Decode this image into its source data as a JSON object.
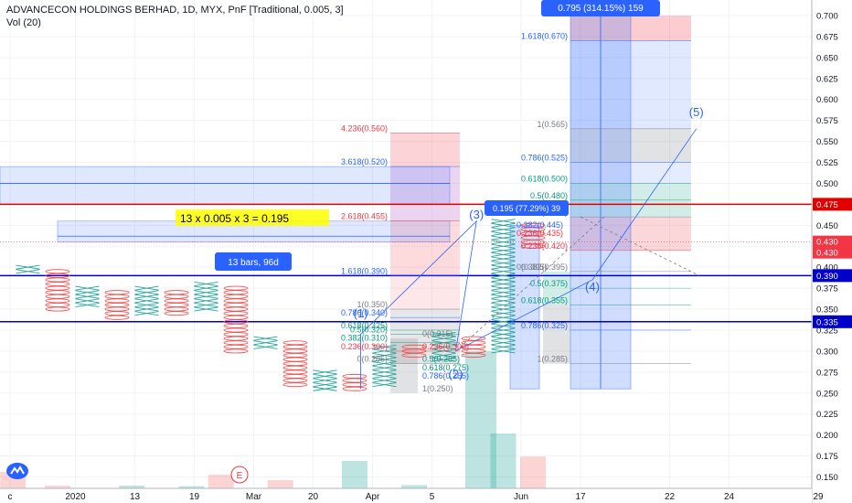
{
  "header": {
    "title": "ADVANCECON HOLDINGS BERHAD, 1D, MYX, PnF [Traditional, 0.005, 3]",
    "volume": "Vol (20)"
  },
  "colors": {
    "x_mark": "#26a69a",
    "o_mark": "#ef5350",
    "red_line": "#e00000",
    "blue_line": "#0000c8",
    "fib_blue": "#2962ff",
    "fib_red": "#f23645",
    "fib_green": "#089981",
    "fib_gray": "#787b86"
  },
  "chart_data": {
    "type": "pnf",
    "box_size": 0.005,
    "reversal": 3,
    "y_axis": {
      "min": 0.15,
      "max": 0.7,
      "ticks": [
        "0.150",
        "0.175",
        "0.200",
        "0.225",
        "0.250",
        "0.275",
        "0.300",
        "0.325",
        "0.350",
        "0.375",
        "0.400",
        "0.425",
        "0.450",
        "0.475",
        "0.500",
        "0.525",
        "0.550",
        "0.575",
        "0.600",
        "0.625",
        "0.650",
        "0.675",
        "0.700"
      ]
    },
    "x_axis": {
      "labels": [
        {
          "text": "c",
          "col": -0.6
        },
        {
          "text": "2020",
          "col": 1.6
        },
        {
          "text": "13",
          "col": 3.6
        },
        {
          "text": "19",
          "col": 5.6
        },
        {
          "text": "Mar",
          "col": 7.6
        },
        {
          "text": "20",
          "col": 9.6
        },
        {
          "text": "Apr",
          "col": 11.6
        },
        {
          "text": "5",
          "col": 13.6
        },
        {
          "text": "Jun",
          "col": 16.6
        },
        {
          "text": "17",
          "col": 18.6
        },
        {
          "text": "22",
          "col": 21.6
        },
        {
          "text": "24",
          "col": 23.6
        },
        {
          "text": "29",
          "col": 26.6
        }
      ]
    },
    "columns": [
      {
        "t": "X",
        "lo": 0.395,
        "hi": 0.4
      },
      {
        "t": "O",
        "lo": 0.35,
        "hi": 0.395
      },
      {
        "t": "X",
        "lo": 0.355,
        "hi": 0.375
      },
      {
        "t": "O",
        "lo": 0.34,
        "hi": 0.37
      },
      {
        "t": "X",
        "lo": 0.345,
        "hi": 0.375
      },
      {
        "t": "O",
        "lo": 0.345,
        "hi": 0.37
      },
      {
        "t": "X",
        "lo": 0.35,
        "hi": 0.38
      },
      {
        "t": "O",
        "lo": 0.3,
        "hi": 0.375
      },
      {
        "t": "X",
        "lo": 0.305,
        "hi": 0.315
      },
      {
        "t": "O",
        "lo": 0.26,
        "hi": 0.31
      },
      {
        "t": "X",
        "lo": 0.255,
        "hi": 0.275
      },
      {
        "t": "O",
        "lo": 0.255,
        "hi": 0.27
      },
      {
        "t": "X",
        "lo": 0.26,
        "hi": 0.305
      },
      {
        "t": "O",
        "lo": 0.295,
        "hi": 0.305
      },
      {
        "t": "X",
        "lo": 0.29,
        "hi": 0.32
      },
      {
        "t": "O",
        "lo": 0.295,
        "hi": 0.315
      },
      {
        "t": "X",
        "lo": 0.3,
        "hi": 0.455
      },
      {
        "t": "O",
        "lo": 0.425,
        "hi": 0.45
      }
    ],
    "volume": [
      {
        "col": -0.5,
        "v": 0.3,
        "c": "red"
      },
      {
        "col": 1.0,
        "v": 0.05,
        "c": "red"
      },
      {
        "col": 3.5,
        "v": 0.05,
        "c": "green"
      },
      {
        "col": 5.5,
        "v": 0.04,
        "c": "green"
      },
      {
        "col": 6.5,
        "v": 0.25,
        "c": "red"
      },
      {
        "col": 8.5,
        "v": 0.15,
        "c": "red"
      },
      {
        "col": 11.0,
        "v": 0.5,
        "c": "green"
      },
      {
        "col": 13.0,
        "v": 0.06,
        "c": "green"
      },
      {
        "col": 16.0,
        "v": 1.0,
        "c": "green"
      },
      {
        "col": 17.0,
        "v": 0.58,
        "c": "red"
      }
    ],
    "horizontal_lines": [
      {
        "y": 0.475,
        "color": "red",
        "label": "0.475"
      },
      {
        "y": 0.39,
        "color": "blue",
        "label": "0.390"
      },
      {
        "y": 0.335,
        "color": "blue",
        "label": "0.335"
      }
    ],
    "price_tags": [
      {
        "y": 0.43,
        "label": "0.430",
        "color": "#f23645"
      },
      {
        "y": 0.43,
        "label": "0.430",
        "color": "#f23645",
        "offset": 12
      }
    ],
    "fib_left": [
      {
        "y": 0.56,
        "label": "4.236(0.560)",
        "c": "red"
      },
      {
        "y": 0.52,
        "label": "3.618(0.520)",
        "c": "blue"
      },
      {
        "y": 0.455,
        "label": "2.618(0.455)",
        "c": "red"
      },
      {
        "y": 0.39,
        "label": "1.618(0.390)",
        "c": "blue"
      },
      {
        "y": 0.35,
        "label": "1(0.350)",
        "c": "gray"
      },
      {
        "y": 0.34,
        "label": "0.786(0.340)",
        "c": "blue"
      },
      {
        "y": 0.325,
        "label": "0.618(0.325)",
        "c": "green"
      },
      {
        "y": 0.32,
        "label": "0.5(0.320)",
        "c": "green"
      },
      {
        "y": 0.31,
        "label": "0.382(0.310)",
        "c": "green"
      },
      {
        "y": 0.3,
        "label": "0.236(0.300)",
        "c": "red"
      },
      {
        "y": 0.285,
        "label": "0(0.285)",
        "c": "gray"
      }
    ],
    "fib_mid": [
      {
        "y": 0.315,
        "label": "0(0.315)",
        "c": "gray"
      },
      {
        "y": 0.3,
        "label": "0.236(0.300)",
        "c": "red"
      },
      {
        "y": 0.285,
        "label": "0.5(0.285)",
        "c": "green"
      },
      {
        "y": 0.275,
        "label": "0.618(0.275)",
        "c": "green"
      },
      {
        "y": 0.265,
        "label": "0.786(0.265)",
        "c": "blue"
      },
      {
        "y": 0.25,
        "label": "1(0.250)",
        "c": "gray"
      }
    ],
    "fib_right": [
      {
        "y": 0.67,
        "label": "1.618(0.670)",
        "c": "blue"
      },
      {
        "y": 0.565,
        "label": "1(0.565)",
        "c": "gray"
      },
      {
        "y": 0.525,
        "label": "0.786(0.525)",
        "c": "blue"
      },
      {
        "y": 0.5,
        "label": "0.618(0.500)",
        "c": "green"
      },
      {
        "y": 0.48,
        "label": "0.5(0.480)",
        "c": "green"
      },
      {
        "y": 0.46,
        "label": "0(0.460)",
        "c": "gray"
      },
      {
        "y": 0.42,
        "label": "0.236(0.420)",
        "c": "red"
      },
      {
        "y": 0.395,
        "label": "0.382(0.395)",
        "c": "gray"
      },
      {
        "y": 0.375,
        "label": "0.5(0.375)",
        "c": "green"
      },
      {
        "y": 0.355,
        "label": "0.618(0.355)",
        "c": "green"
      },
      {
        "y": 0.325,
        "label": "0.786(0.325)",
        "c": "blue"
      },
      {
        "y": 0.285,
        "label": "1(0.285)",
        "c": "gray"
      }
    ],
    "fib_small": [
      {
        "y": 0.445,
        "label": "0.382(0.445)",
        "c": "blue"
      },
      {
        "y": 0.435,
        "label": "0.236(0.435)",
        "c": "red"
      },
      {
        "y": 0.395,
        "label": "0(0.395)",
        "c": "gray"
      }
    ],
    "annotations": {
      "formula": "13 x 0.005 x 3 = 0.195",
      "bars_badge": "13 bars, 96d",
      "measure_mid": "0.195 (77.29%) 39",
      "measure_top": "0.795 (314.15%) 159"
    },
    "wave_labels": [
      {
        "text": "(5)",
        "col": 22.5,
        "y": 0.58
      },
      {
        "text": "(4)",
        "col": 19.0,
        "y": 0.372
      },
      {
        "text": "(3)",
        "col": 15.1,
        "y": 0.458
      },
      {
        "text": "(2)",
        "col": 14.4,
        "y": 0.268
      },
      {
        "text": "(1)",
        "col": 11.2,
        "y": 0.34
      }
    ],
    "volume_marker": "E"
  }
}
